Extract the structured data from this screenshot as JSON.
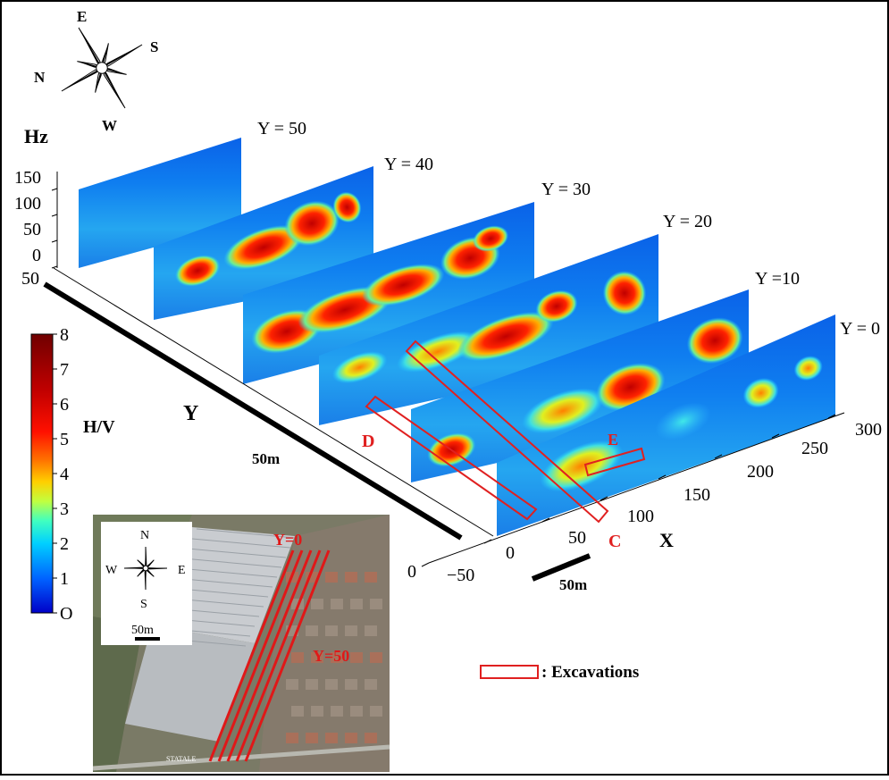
{
  "chart_data": {
    "type": "heatmap",
    "title": "",
    "colorbar": {
      "label": "H/V",
      "min": 0,
      "max": 8,
      "ticks": [
        "O",
        "1",
        "2",
        "3",
        "4",
        "5",
        "6",
        "7",
        "8"
      ],
      "colors": [
        "#0000c8",
        "#0080ff",
        "#00e0ff",
        "#60ff90",
        "#e0ff20",
        "#ffa000",
        "#ff2000",
        "#c00000",
        "#700000"
      ]
    },
    "axes": {
      "x": {
        "label": "X",
        "ticks": [
          "−50",
          "0",
          "50",
          "100",
          "150",
          "200",
          "250",
          "300"
        ],
        "range": [
          -50,
          300
        ]
      },
      "y": {
        "label": "Y",
        "ticks": [
          "0",
          "50"
        ],
        "range": [
          0,
          50
        ]
      },
      "z": {
        "label": "Hz",
        "ticks": [
          "0",
          "50",
          "100",
          "150"
        ],
        "range": [
          0,
          150
        ]
      }
    },
    "sections": [
      {
        "label": "Y = 50",
        "y": 50
      },
      {
        "label": "Y = 40",
        "y": 40
      },
      {
        "label": "Y = 30",
        "y": 30
      },
      {
        "label": "Y = 20",
        "y": 20
      },
      {
        "label": "Y =10",
        "y": 10
      },
      {
        "label": "Y = 0",
        "y": 0
      }
    ],
    "excavations": [
      {
        "label": "D"
      },
      {
        "label": "C"
      },
      {
        "label": "E"
      }
    ],
    "legend": {
      "excavation_text": ": Excavations"
    },
    "scale_bars": [
      {
        "label": "50m"
      },
      {
        "label": "50m"
      }
    ],
    "compass": {
      "E": "E",
      "S": "S",
      "N": "N",
      "W": "W"
    },
    "inset_map": {
      "compass": {
        "N": "N",
        "E": "E",
        "S": "S",
        "W": "W"
      },
      "scale": "50m",
      "lines": [
        "Y=0",
        "Y=50"
      ],
      "road_label": "STATALE"
    }
  }
}
